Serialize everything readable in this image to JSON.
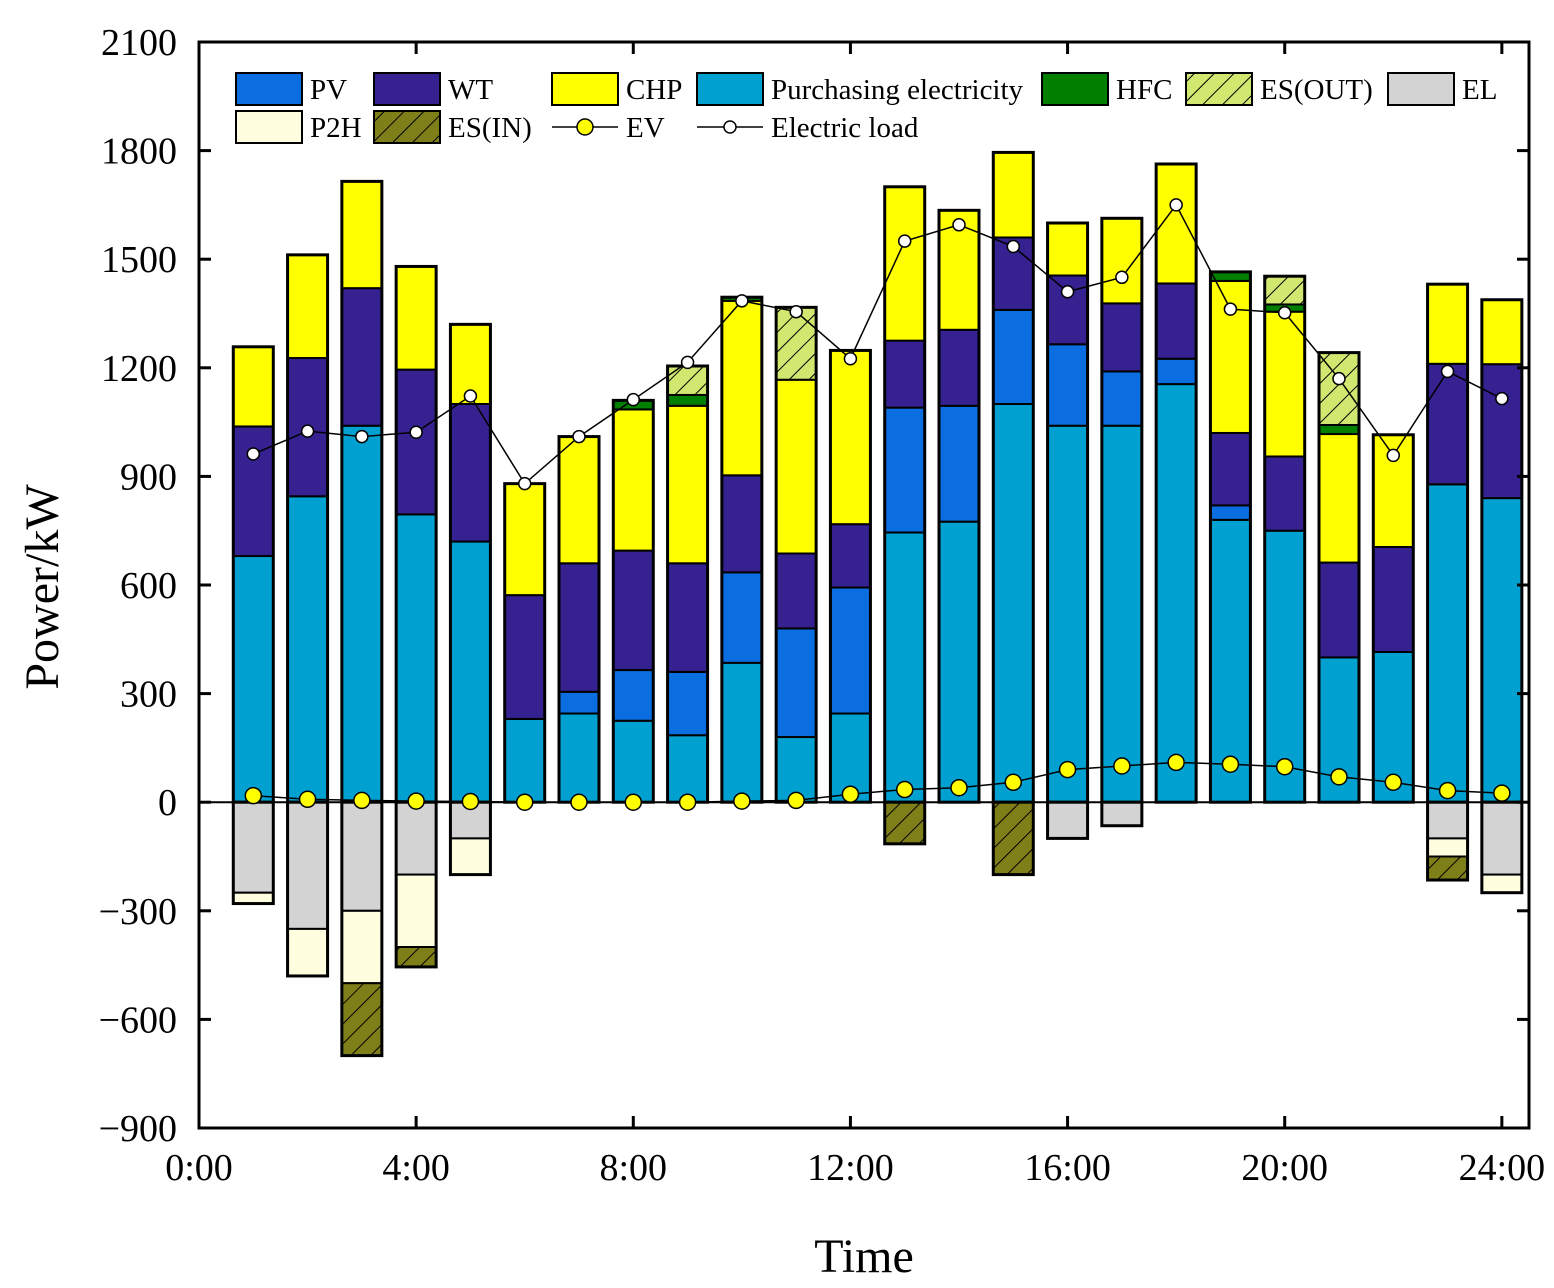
{
  "chart_data": {
    "type": "bar",
    "stacked": true,
    "title": "",
    "xlabel": "Time",
    "ylabel": "Power/kW",
    "xlim": [
      0,
      24.5
    ],
    "ylim": [
      -900,
      2100
    ],
    "x_ticks": [
      0,
      4,
      8,
      12,
      16,
      20,
      24
    ],
    "x_tick_labels": [
      "0:00",
      "4:00",
      "8:00",
      "12:00",
      "16:00",
      "20:00",
      "24:00"
    ],
    "y_ticks": [
      -900,
      -600,
      -300,
      0,
      300,
      600,
      900,
      1200,
      1500,
      1800,
      2100
    ],
    "y_tick_labels": [
      "−900",
      "−600",
      "−300",
      "0",
      "300",
      "600",
      "900",
      "1200",
      "1500",
      "1800",
      "2100"
    ],
    "hours": [
      1,
      2,
      3,
      4,
      5,
      6,
      7,
      8,
      9,
      10,
      11,
      12,
      13,
      14,
      15,
      16,
      17,
      18,
      19,
      20,
      21,
      22,
      23,
      24
    ],
    "positive_series": [
      {
        "name": "Purchasing electricity",
        "color": "#00A0D0",
        "hatch": false,
        "values": [
          680,
          845,
          1040,
          795,
          720,
          230,
          245,
          225,
          185,
          385,
          180,
          245,
          745,
          775,
          1100,
          1040,
          1040,
          1155,
          780,
          750,
          400,
          415,
          878,
          840
        ]
      },
      {
        "name": "PV",
        "color": "#0A6EE0",
        "hatch": false,
        "values": [
          0,
          0,
          0,
          0,
          0,
          0,
          60,
          140,
          175,
          250,
          300,
          348,
          345,
          320,
          260,
          225,
          150,
          70,
          40,
          0,
          0,
          0,
          0,
          0
        ]
      },
      {
        "name": "WT",
        "color": "#35218F",
        "hatch": false,
        "values": [
          358,
          382,
          380,
          400,
          380,
          342,
          355,
          330,
          300,
          268,
          207,
          175,
          185,
          210,
          200,
          190,
          188,
          208,
          200,
          205,
          262,
          290,
          333,
          370
        ]
      },
      {
        "name": "CHP",
        "color": "#FFFF00",
        "hatch": false,
        "values": [
          220,
          285,
          295,
          285,
          220,
          308,
          350,
          390,
          435,
          482,
          480,
          480,
          425,
          330,
          235,
          145,
          235,
          330,
          420,
          400,
          355,
          310,
          220,
          178
        ]
      },
      {
        "name": "HFC",
        "color": "#007F00",
        "hatch": false,
        "values": [
          0,
          0,
          0,
          0,
          0,
          0,
          0,
          25,
          30,
          10,
          0,
          0,
          0,
          0,
          0,
          0,
          0,
          0,
          25,
          20,
          25,
          0,
          0,
          0
        ]
      },
      {
        "name": "ES(OUT)",
        "color": "#D0E870",
        "hatch": true,
        "values": [
          0,
          0,
          0,
          0,
          0,
          0,
          0,
          0,
          80,
          0,
          200,
          0,
          0,
          0,
          0,
          0,
          0,
          0,
          0,
          78,
          200,
          0,
          0,
          0
        ]
      }
    ],
    "negative_series": [
      {
        "name": "EL",
        "color": "#D3D3D3",
        "hatch": false,
        "values": [
          -250,
          -350,
          -300,
          -200,
          -100,
          0,
          0,
          0,
          0,
          0,
          0,
          0,
          0,
          0,
          0,
          -100,
          -65,
          0,
          0,
          0,
          0,
          0,
          -100,
          -200
        ]
      },
      {
        "name": "P2H",
        "color": "#FFFFE0",
        "hatch": false,
        "values": [
          -30,
          -130,
          -200,
          -200,
          -100,
          0,
          0,
          0,
          0,
          0,
          0,
          0,
          0,
          0,
          0,
          0,
          0,
          0,
          0,
          0,
          0,
          0,
          -50,
          -50
        ]
      },
      {
        "name": "ES(IN)",
        "color": "#7F7F1A",
        "hatch": true,
        "values": [
          0,
          0,
          -200,
          -55,
          0,
          0,
          0,
          0,
          0,
          0,
          0,
          0,
          -115,
          0,
          -200,
          0,
          0,
          0,
          0,
          0,
          0,
          0,
          -65,
          0
        ]
      }
    ],
    "line_series": [
      {
        "name": "EV",
        "marker_fill": "#FFFF00",
        "marker": "circle-large",
        "values": [
          18,
          8,
          5,
          3,
          2,
          0,
          0,
          0,
          0,
          3,
          5,
          22,
          35,
          40,
          55,
          90,
          100,
          110,
          105,
          98,
          70,
          55,
          32,
          25
        ]
      },
      {
        "name": "Electric load",
        "marker_fill": "#FFFFFF",
        "marker": "circle-small",
        "values": [
          962,
          1025,
          1010,
          1022,
          1122,
          880,
          1010,
          1112,
          1215,
          1385,
          1355,
          1225,
          1550,
          1595,
          1535,
          1410,
          1450,
          1650,
          1362,
          1352,
          1170,
          958,
          1190,
          1115
        ]
      }
    ],
    "legend": {
      "position": "top-left",
      "entries": [
        "PV",
        "WT",
        "CHP",
        "Purchasing electricity",
        "HFC",
        "ES(OUT)",
        "EL",
        "P2H",
        "ES(IN)",
        "EV",
        "Electric load"
      ]
    }
  }
}
